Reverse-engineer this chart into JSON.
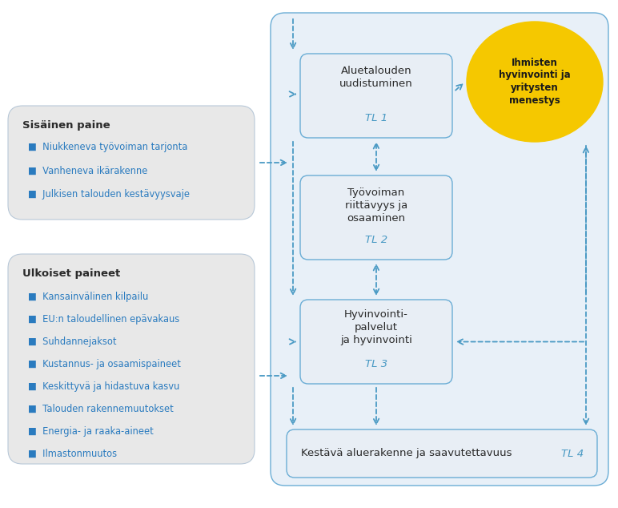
{
  "bg_color": "#e8f0f8",
  "box_fill": "#e8eef5",
  "box_edge": "#6aadd5",
  "left_box_fill": "#e8e8e8",
  "left_box_edge": "#b8c8d8",
  "bottom_box_fill": "#e8eef5",
  "bottom_box_edge": "#6aadd5",
  "arrow_color": "#4a9ac4",
  "text_color_dark": "#2a2a2a",
  "text_color_blue": "#2a7bbf",
  "italic_color": "#4a9ac4",
  "ellipse_color": "#f5c800",
  "circle_text": "Ihmisten\nhyvinvointi ja\nyritysten\nmenestys",
  "box1_title": "Aluetalouden\nuudistuminen",
  "box1_sub": "TL 1",
  "box2_title": "Työvoiman\nriittävyys ja\nosaaminen",
  "box2_sub": "TL 2",
  "box3_title": "Hyvinvointi-\npalvelut\nja hyvinvointi",
  "box3_sub": "TL 3",
  "box4_title": "Kestävä aluerakenne ja saavutettavuus",
  "box4_sub": "TL 4",
  "left1_title": "Sisäinen paine",
  "left1_bullets": [
    "Niukkeneva työvoiman tarjonta",
    "Vanheneva ikärakenne",
    "Julkisen talouden kestävyysvaje"
  ],
  "left2_title": "Ulkoiset paineet",
  "left2_bullets": [
    "Kansainvälinen kilpailu",
    "EU:n taloudellinen epävakaus",
    "Suhdannejaksot",
    "Kustannus- ja osaamispaineet",
    "Keskittyvä ja hidastuva kasvu",
    "Talouden rakennemuutokset",
    "Energia- ja raaka-aineet",
    "Ilmastonmuutos"
  ]
}
